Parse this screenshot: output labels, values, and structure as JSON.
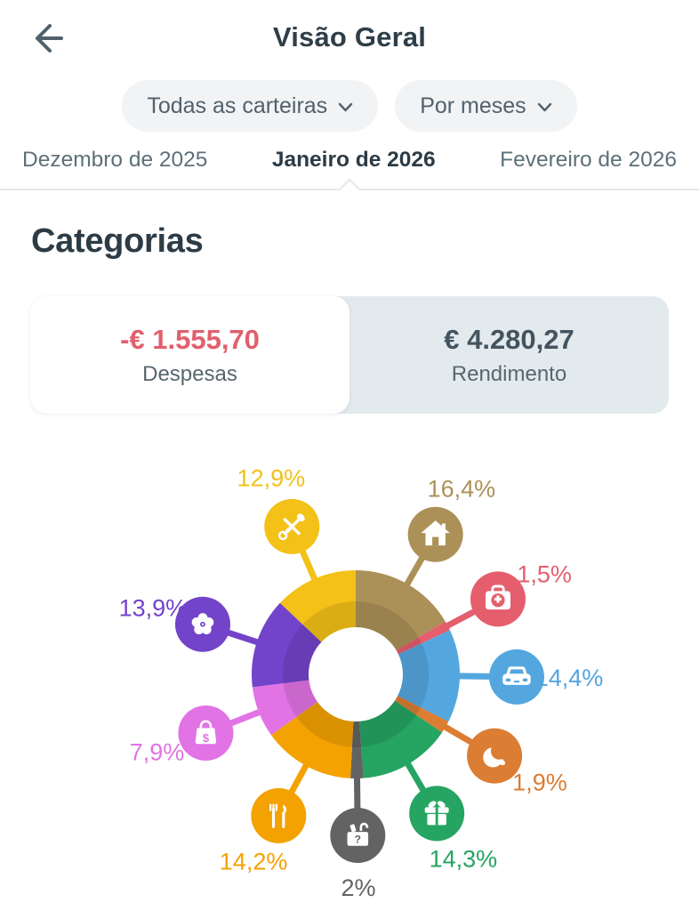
{
  "header": {
    "title": "Visão Geral"
  },
  "filters": {
    "wallet": "Todas as carteiras",
    "period": "Por meses"
  },
  "month_tabs": [
    {
      "label": "Dezembro de 2025",
      "selected": false
    },
    {
      "label": "Janeiro de 2026",
      "selected": true
    },
    {
      "label": "Fevereiro de 2026",
      "selected": false
    }
  ],
  "section_title": "Categorias",
  "toggle": {
    "expenses": {
      "amount": "-€ 1.555,70",
      "label": "Despesas",
      "selected": true
    },
    "income": {
      "amount": "€ 4.280,27",
      "label": "Rendimento",
      "selected": false
    }
  },
  "chart_data": {
    "type": "pie",
    "donut": true,
    "unit": "%",
    "direction": "clockwise",
    "start_angle_deg": 0,
    "legend_position": "around-labels",
    "categories": [
      {
        "name": "housing",
        "icon": "house-icon",
        "label": "16,4%",
        "value": 16.4,
        "color": "#AB9157"
      },
      {
        "name": "health",
        "icon": "medkit-icon",
        "label": "1,5%",
        "value": 1.5,
        "color": "#E55E6D"
      },
      {
        "name": "car",
        "icon": "car-icon",
        "label": "14,4%",
        "value": 14.4,
        "color": "#54A6DF"
      },
      {
        "name": "bakery",
        "icon": "croissant-icon",
        "label": "1,9%",
        "value": 1.9,
        "color": "#DB7D33"
      },
      {
        "name": "gifts",
        "icon": "gift-icon",
        "label": "14,3%",
        "value": 14.3,
        "color": "#26A462"
      },
      {
        "name": "other",
        "icon": "basket-icon",
        "label": "2%",
        "value": 2.0,
        "color": "#636363"
      },
      {
        "name": "food",
        "icon": "utensils-icon",
        "label": "14,2%",
        "value": 14.2,
        "color": "#F3A202"
      },
      {
        "name": "shopping",
        "icon": "bag-icon",
        "label": "7,9%",
        "value": 7.9,
        "color": "#E173E5"
      },
      {
        "name": "flowers",
        "icon": "flower-icon",
        "label": "13,9%",
        "value": 13.9,
        "color": "#7343C9"
      },
      {
        "name": "child",
        "icon": "pacifier-icon",
        "label": "12,9%",
        "value": 12.9,
        "color": "#F3C117"
      }
    ]
  }
}
